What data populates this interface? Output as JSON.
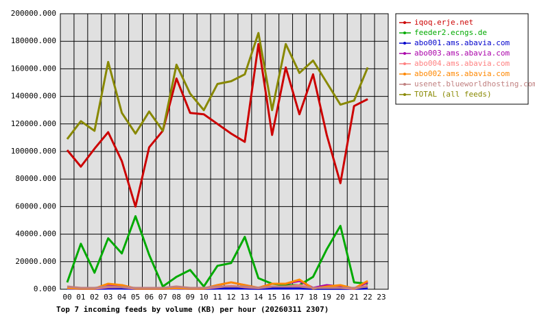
{
  "chart_data": {
    "type": "line",
    "title": "Top 7 incoming feeds by volume (KB) per hour (20260311 2307)",
    "categories": [
      "00",
      "01",
      "02",
      "03",
      "04",
      "05",
      "06",
      "07",
      "08",
      "09",
      "10",
      "11",
      "12",
      "13",
      "14",
      "15",
      "16",
      "17",
      "18",
      "19",
      "20",
      "21",
      "22",
      "23"
    ],
    "ylim": [
      0,
      200000
    ],
    "yticks": [
      {
        "value": 0,
        "label": "0.000"
      },
      {
        "value": 20000,
        "label": "20000.000"
      },
      {
        "value": 40000,
        "label": "40000.000"
      },
      {
        "value": 60000,
        "label": "60000.000"
      },
      {
        "value": 80000,
        "label": "80000.000"
      },
      {
        "value": 100000,
        "label": "100000.000"
      },
      {
        "value": 120000,
        "label": "120000.000"
      },
      {
        "value": 140000,
        "label": "140000.000"
      },
      {
        "value": 160000,
        "label": "160000.000"
      },
      {
        "value": 180000,
        "label": "180000.000"
      },
      {
        "value": 200000,
        "label": "200000.000"
      }
    ],
    "grid": true,
    "legend": "right",
    "series": [
      {
        "name": "iqoq.erje.net",
        "color": "#cc0000",
        "values": [
          101000,
          89000,
          102000,
          114000,
          93000,
          60000,
          103000,
          115000,
          153000,
          128000,
          127000,
          120000,
          113000,
          107000,
          178000,
          112000,
          161000,
          127000,
          156000,
          112000,
          77000,
          133000,
          138000,
          null
        ]
      },
      {
        "name": "feeder2.ecngs.de",
        "color": "#00aa00",
        "values": [
          5000,
          33000,
          12000,
          37000,
          26000,
          53000,
          25000,
          2000,
          9000,
          14000,
          2000,
          17000,
          19000,
          38000,
          8000,
          4000,
          3000,
          3000,
          9000,
          29000,
          46000,
          5000,
          4000,
          null
        ]
      },
      {
        "name": "abo001.ams.abavia.com",
        "color": "#0000cc",
        "values": [
          500,
          300,
          300,
          500,
          500,
          300,
          300,
          300,
          500,
          300,
          300,
          500,
          500,
          500,
          300,
          500,
          500,
          500,
          300,
          300,
          300,
          300,
          500,
          null
        ]
      },
      {
        "name": "abo003.ams.abavia.com",
        "color": "#aa00aa",
        "values": [
          1000,
          500,
          500,
          3000,
          3000,
          500,
          500,
          500,
          1000,
          500,
          500,
          3000,
          5000,
          3000,
          1000,
          4000,
          4000,
          6000,
          1000,
          3000,
          2000,
          500,
          5000,
          null
        ]
      },
      {
        "name": "abo004.ams.abavia.com",
        "color": "#ff8080",
        "values": [
          800,
          400,
          400,
          1500,
          1500,
          400,
          400,
          400,
          800,
          400,
          400,
          1500,
          2500,
          1500,
          800,
          2000,
          2000,
          3000,
          800,
          1500,
          1000,
          400,
          2500,
          null
        ]
      },
      {
        "name": "abo002.ams.abavia.com",
        "color": "#ff8800",
        "values": [
          1000,
          500,
          500,
          4000,
          3000,
          500,
          500,
          500,
          1000,
          500,
          500,
          3000,
          5000,
          3000,
          1000,
          4000,
          4000,
          7000,
          500,
          2000,
          3000,
          500,
          6000,
          null
        ]
      },
      {
        "name": "usenet.blueworldhosting.com",
        "color": "#c08080",
        "values": [
          2000,
          1000,
          1000,
          2000,
          1500,
          1000,
          1000,
          1000,
          2000,
          1000,
          1000,
          2000,
          2000,
          2000,
          1000,
          2000,
          2000,
          2000,
          1000,
          1000,
          1000,
          1000,
          2000,
          null
        ]
      },
      {
        "name": "TOTAL (all feeds)",
        "color": "#888800",
        "values": [
          109000,
          122000,
          115000,
          165000,
          128000,
          113000,
          129000,
          115000,
          163000,
          142000,
          130000,
          149000,
          151000,
          156000,
          186000,
          130000,
          178000,
          157000,
          166000,
          150000,
          134000,
          137000,
          161000,
          null
        ]
      }
    ]
  }
}
